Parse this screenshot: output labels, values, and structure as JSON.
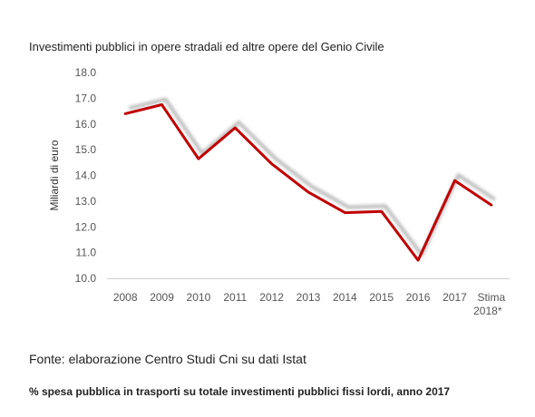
{
  "chart_data": {
    "type": "line",
    "title": "Investimenti pubblici in opere stradali ed altre opere del Genio Civile",
    "ylabel": "Miliardi di euro",
    "xlabel": "",
    "categories": [
      "2008",
      "2009",
      "2010",
      "2011",
      "2012",
      "2013",
      "2014",
      "2015",
      "2016",
      "2017",
      "Stima 2018*"
    ],
    "series": [
      {
        "values": [
          16.4,
          16.75,
          14.65,
          15.85,
          14.45,
          13.35,
          12.55,
          12.6,
          10.7,
          13.8,
          12.85
        ],
        "color": "#c00000"
      }
    ],
    "ylim": [
      10.0,
      18.0
    ],
    "yticks": [
      "10.0",
      "11.0",
      "12.0",
      "13.0",
      "14.0",
      "15.0",
      "16.0",
      "17.0",
      "18.0"
    ],
    "grid": false,
    "shadow": true
  },
  "notes": {
    "source": "Fonte: elaborazione Centro Studi Cni su dati Istat",
    "footer": "% spesa pubblica in trasporti su totale investimenti pubblici fissi lordi, anno 2017"
  }
}
